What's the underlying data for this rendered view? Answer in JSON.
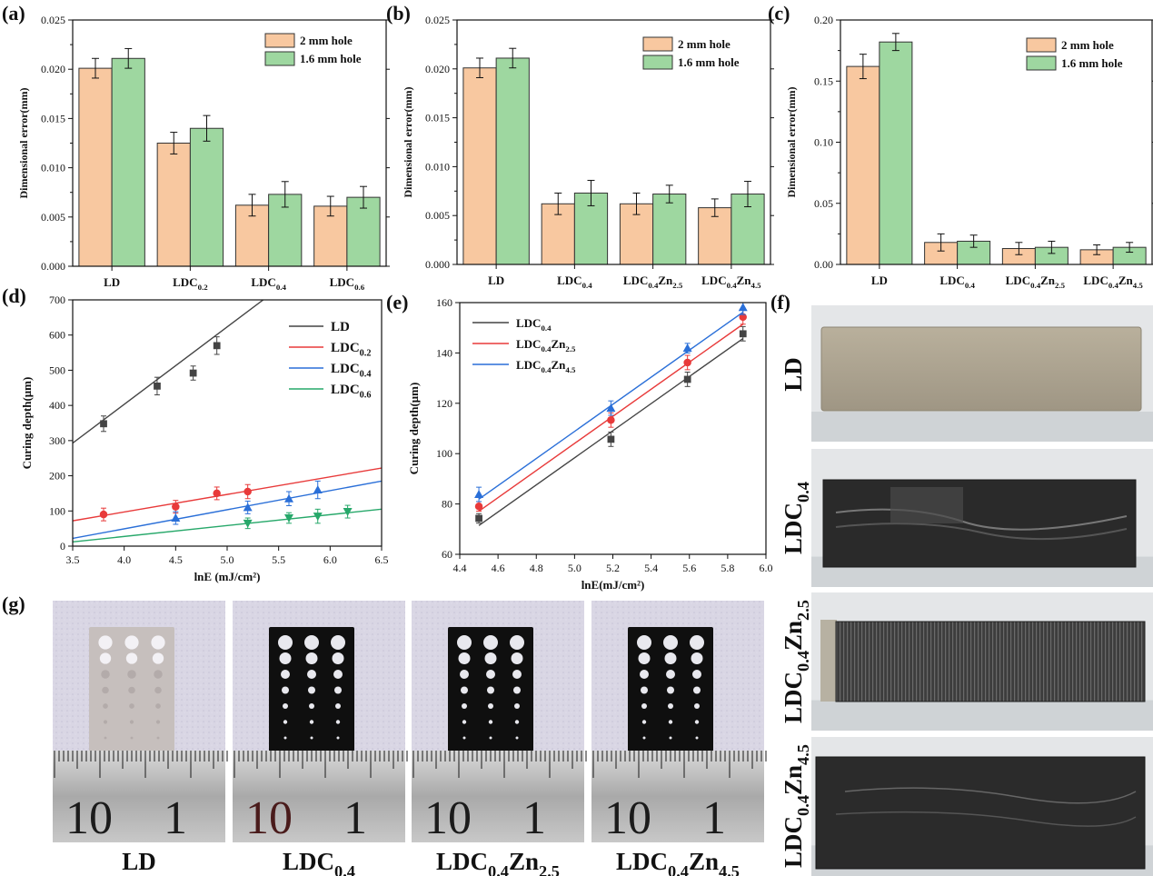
{
  "colors": {
    "bar_2mm": "#F8C8A0",
    "bar_16mm": "#9ED7A0",
    "LD_line": "#444444",
    "LDC02_line": "#E83A3A",
    "LDC04_line": "#2A6FD8",
    "LDC06_line": "#27A86A",
    "LDC04Zn25_line": "#E83A3A",
    "LDC04Zn45_line": "#2A6FD8"
  },
  "panel_labels": [
    "(a)",
    "(b)",
    "(c)",
    "(d)",
    "(e)",
    "(f)",
    "(g)"
  ],
  "chart_data": [
    {
      "id": "a",
      "type": "bar",
      "ylabel": "Dimensional error(mm)",
      "ylim": [
        0,
        0.025
      ],
      "yticks": [
        "0.000",
        "0.005",
        "0.010",
        "0.015",
        "0.020",
        "0.025"
      ],
      "categories": [
        {
          "main": "LD",
          "sub": ""
        },
        {
          "main": "LDC",
          "sub": "0.2"
        },
        {
          "main": "LDC",
          "sub": "0.4"
        },
        {
          "main": "LDC",
          "sub": "0.6"
        }
      ],
      "series": [
        {
          "name": "2 mm hole",
          "values": [
            0.0201,
            0.0125,
            0.0062,
            0.0061
          ],
          "errors": [
            0.001,
            0.0011,
            0.0011,
            0.001
          ]
        },
        {
          "name": "1.6 mm hole",
          "values": [
            0.0211,
            0.014,
            0.0073,
            0.007
          ],
          "errors": [
            0.001,
            0.0013,
            0.0013,
            0.0011
          ]
        }
      ],
      "legend": "top-right"
    },
    {
      "id": "b",
      "type": "bar",
      "ylabel": "Dimensional error(mm)",
      "ylim": [
        0,
        0.025
      ],
      "yticks": [
        "0.000",
        "0.005",
        "0.010",
        "0.015",
        "0.020",
        "0.025"
      ],
      "categories": [
        {
          "main": "LD",
          "sub": ""
        },
        {
          "main": "LDC",
          "sub": "0.4"
        },
        {
          "main": "LDC",
          "sub": "0.4",
          "main2": "Zn",
          "sub2": "2.5"
        },
        {
          "main": "LDC",
          "sub": "0.4",
          "main2": "Zn",
          "sub2": "4.5"
        }
      ],
      "series": [
        {
          "name": "2 mm hole",
          "values": [
            0.0201,
            0.0062,
            0.0062,
            0.0058
          ],
          "errors": [
            0.001,
            0.0011,
            0.0011,
            0.0009
          ]
        },
        {
          "name": "1.6 mm hole",
          "values": [
            0.0211,
            0.0073,
            0.0072,
            0.0072
          ],
          "errors": [
            0.001,
            0.0013,
            0.0009,
            0.0013
          ]
        }
      ],
      "legend": "top-right"
    },
    {
      "id": "c",
      "type": "bar",
      "ylabel": "Dimensional error(mm)",
      "ylim": [
        0,
        0.2
      ],
      "yticks": [
        "0.00",
        "0.05",
        "0.10",
        "0.15",
        "0.20"
      ],
      "categories": [
        {
          "main": "LD",
          "sub": ""
        },
        {
          "main": "LDC",
          "sub": "0.4"
        },
        {
          "main": "LDC",
          "sub": "0.4",
          "main2": "Zn",
          "sub2": "2.5"
        },
        {
          "main": "LDC",
          "sub": "0.4",
          "main2": "Zn",
          "sub2": "4.5"
        }
      ],
      "series": [
        {
          "name": "2 mm hole",
          "values": [
            0.162,
            0.018,
            0.013,
            0.012
          ],
          "errors": [
            0.01,
            0.007,
            0.005,
            0.004
          ]
        },
        {
          "name": "1.6 mm hole",
          "values": [
            0.182,
            0.019,
            0.014,
            0.014
          ],
          "errors": [
            0.007,
            0.005,
            0.005,
            0.004
          ]
        }
      ],
      "legend": "top-right"
    },
    {
      "id": "d",
      "type": "scatter",
      "xlabel": "lnE (mJ/cm²)",
      "ylabel": "Curing depth(μm)",
      "xlim": [
        3.5,
        6.5
      ],
      "ylim": [
        0,
        700
      ],
      "xticks": [
        "3.5",
        "4.0",
        "4.5",
        "5.0",
        "5.5",
        "6.0",
        "6.5"
      ],
      "yticks": [
        "0",
        "100",
        "200",
        "300",
        "400",
        "500",
        "600",
        "700"
      ],
      "series": [
        {
          "name": "LD",
          "sub": "",
          "marker": "square",
          "x": [
            3.8,
            4.32,
            4.67,
            4.9
          ],
          "y": [
            348,
            455,
            492,
            570
          ],
          "errors": [
            22,
            25,
            20,
            25
          ],
          "fit": [
            [
              3.5,
              293
            ],
            [
              5.35,
              700
            ]
          ]
        },
        {
          "name": "LDC",
          "sub": "0.2",
          "marker": "circle",
          "x": [
            3.8,
            4.5,
            4.9,
            5.2
          ],
          "y": [
            90,
            112,
            150,
            155
          ],
          "errors": [
            18,
            18,
            18,
            20
          ],
          "fit": [
            [
              3.5,
              72
            ],
            [
              6.5,
              222
            ]
          ]
        },
        {
          "name": "LDC",
          "sub": "0.4",
          "marker": "triangle",
          "x": [
            4.5,
            5.2,
            5.6,
            5.88
          ],
          "y": [
            80,
            110,
            135,
            160
          ],
          "errors": [
            18,
            18,
            20,
            25
          ],
          "fit": [
            [
              3.5,
              22
            ],
            [
              6.5,
              185
            ]
          ]
        },
        {
          "name": "LDC",
          "sub": "0.6",
          "marker": "triangle-down",
          "x": [
            5.2,
            5.6,
            5.88,
            6.17
          ],
          "y": [
            65,
            80,
            85,
            98
          ],
          "errors": [
            15,
            15,
            20,
            18
          ],
          "fit": [
            [
              3.5,
              12
            ],
            [
              6.5,
              105
            ]
          ]
        }
      ],
      "legend": "top-right"
    },
    {
      "id": "e",
      "type": "scatter",
      "xlabel": "lnE(mJ/cm²)",
      "ylabel": "Curing depth(μm)",
      "xlim": [
        4.4,
        6.0
      ],
      "ylim": [
        60,
        165
      ],
      "xticks": [
        "4.4",
        "4.6",
        "4.8",
        "5.0",
        "5.2",
        "5.4",
        "5.6",
        "5.8",
        "6.0"
      ],
      "yticks": [
        "60",
        "80",
        "100",
        "120",
        "140",
        "160"
      ],
      "series": [
        {
          "name": "LDC",
          "sub": "0.4",
          "name2": "",
          "sub2": "",
          "marker": "square",
          "x": [
            4.5,
            5.19,
            5.59,
            5.88
          ],
          "y": [
            75,
            108,
            133,
            152
          ],
          "errors": [
            2,
            3,
            3,
            3
          ],
          "fit": [
            [
              4.5,
              72
            ],
            [
              5.88,
              150
            ]
          ]
        },
        {
          "name": "LDC",
          "sub": "0.4",
          "name2": "Zn",
          "sub2": "2.5",
          "marker": "circle",
          "x": [
            4.5,
            5.19,
            5.59,
            5.88
          ],
          "y": [
            80,
            116,
            140,
            159
          ],
          "errors": [
            2,
            3,
            3,
            3
          ],
          "fit": [
            [
              4.5,
              78
            ],
            [
              5.88,
              156
            ]
          ]
        },
        {
          "name": "LDC",
          "sub": "0.4",
          "name2": "Zn",
          "sub2": "4.5",
          "marker": "triangle",
          "x": [
            4.5,
            5.19,
            5.59,
            5.88
          ],
          "y": [
            85,
            121,
            146,
            163
          ],
          "errors": [
            3,
            3,
            2,
            3
          ],
          "fit": [
            [
              4.5,
              83
            ],
            [
              5.88,
              161
            ]
          ]
        }
      ],
      "legend": "top-left"
    }
  ],
  "panel_f": {
    "labels": [
      {
        "main": "LD",
        "sub": "",
        "main2": "",
        "sub2": ""
      },
      {
        "main": "LDC",
        "sub": "0.4",
        "main2": "",
        "sub2": ""
      },
      {
        "main": "LDC",
        "sub": "0.4",
        "main2": "Zn",
        "sub2": "2.5"
      },
      {
        "main": "LDC",
        "sub": "0.4",
        "main2": "Zn",
        "sub2": "4.5"
      }
    ]
  },
  "panel_g": {
    "labels": [
      {
        "main": "LD",
        "sub": "",
        "main2": "",
        "sub2": ""
      },
      {
        "main": "LDC",
        "sub": "0.4",
        "main2": "",
        "sub2": ""
      },
      {
        "main": "LDC",
        "sub": "0.4",
        "main2": "Zn",
        "sub2": "2.5"
      },
      {
        "main": "LDC",
        "sub": "0.4",
        "main2": "Zn",
        "sub2": "4.5"
      }
    ],
    "ruler_numbers": [
      "10",
      "1"
    ]
  }
}
